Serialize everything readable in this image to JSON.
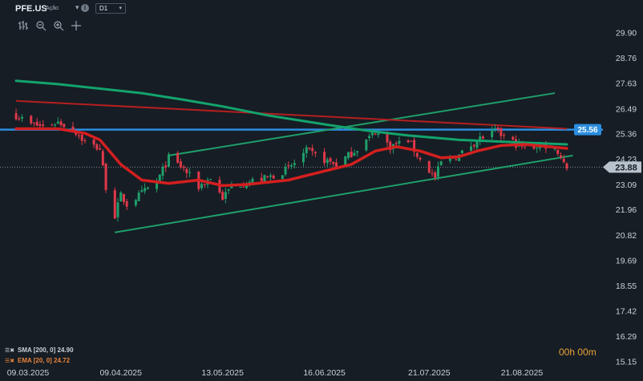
{
  "header": {
    "ticker": "PFE.US",
    "kind": "Ação",
    "info_icon": "i",
    "timeframe": "D1",
    "tools": [
      "bar-chart-icon",
      "zoom-out-icon",
      "zoom-in-icon",
      "crosshair-icon"
    ]
  },
  "legend": {
    "sma": "SMA [200, 0] 24.90",
    "ema": "EMA [20, 0] 24.72"
  },
  "timer": "00h 00m",
  "colors": {
    "background": "#161d24",
    "up": "#1f9e6a",
    "down": "#e0394a",
    "sma": "#14a36d",
    "ema": "#d31f1f",
    "horizontal_line": "#2b8de0",
    "channel": "#1f9e6a",
    "resistance": "#b51f1f",
    "price_label": "#b8c2cc"
  },
  "chart_data": {
    "type": "candlestick",
    "title": "",
    "ylim": [
      15.15,
      30.8
    ],
    "y_ticks": [
      29.9,
      28.76,
      27.63,
      26.49,
      25.36,
      24.23,
      23.09,
      21.96,
      20.82,
      19.69,
      18.55,
      17.42,
      16.29,
      15.15
    ],
    "x_ticks": [
      "09.03.2025",
      "09.04.2025",
      "13.05.2025",
      "16.06.2025",
      "21.07.2025",
      "21.08.2025"
    ],
    "x_start": "2025-03-05",
    "x_end": "2025-09-05",
    "last_price": 23.88,
    "horizontal_line_value": 25.56,
    "close_path": [
      [
        "2025-03-05",
        26.2
      ],
      [
        "2025-03-10",
        25.8
      ],
      [
        "2025-03-14",
        25.7
      ],
      [
        "2025-03-19",
        25.9
      ],
      [
        "2025-03-24",
        25.6
      ],
      [
        "2025-03-28",
        25.0
      ],
      [
        "2025-04-02",
        24.7
      ],
      [
        "2025-04-04",
        23.0
      ],
      [
        "2025-04-07",
        21.7
      ],
      [
        "2025-04-09",
        22.6
      ],
      [
        "2025-04-11",
        22.2
      ],
      [
        "2025-04-16",
        22.7
      ],
      [
        "2025-04-21",
        23.2
      ],
      [
        "2025-04-25",
        24.3
      ],
      [
        "2025-04-30",
        23.8
      ],
      [
        "2025-05-05",
        23.0
      ],
      [
        "2025-05-09",
        23.4
      ],
      [
        "2025-05-13",
        22.5
      ],
      [
        "2025-05-16",
        23.0
      ],
      [
        "2025-05-21",
        23.2
      ],
      [
        "2025-05-28",
        23.4
      ],
      [
        "2025-06-04",
        23.8
      ],
      [
        "2025-06-10",
        24.6
      ],
      [
        "2025-06-16",
        24.2
      ],
      [
        "2025-06-20",
        24.0
      ],
      [
        "2025-06-25",
        24.5
      ],
      [
        "2025-07-01",
        25.2
      ],
      [
        "2025-07-03",
        25.5
      ],
      [
        "2025-07-08",
        24.8
      ],
      [
        "2025-07-14",
        25.1
      ],
      [
        "2025-07-18",
        24.2
      ],
      [
        "2025-07-23",
        23.4
      ],
      [
        "2025-07-25",
        24.1
      ],
      [
        "2025-07-31",
        24.4
      ],
      [
        "2025-08-06",
        25.1
      ],
      [
        "2025-08-12",
        25.5
      ],
      [
        "2025-08-18",
        25.0
      ],
      [
        "2025-08-22",
        24.7
      ],
      [
        "2025-08-28",
        24.9
      ],
      [
        "2025-09-02",
        24.6
      ],
      [
        "2025-09-05",
        23.88
      ]
    ],
    "series": [
      {
        "name": "SMA [200, 0] 24.90",
        "points": [
          [
            "2025-03-05",
            27.75
          ],
          [
            "2025-03-19",
            27.6
          ],
          [
            "2025-04-02",
            27.4
          ],
          [
            "2025-04-16",
            27.2
          ],
          [
            "2025-04-30",
            26.9
          ],
          [
            "2025-05-13",
            26.6
          ],
          [
            "2025-05-28",
            26.2
          ],
          [
            "2025-06-16",
            25.8
          ],
          [
            "2025-07-01",
            25.5
          ],
          [
            "2025-07-14",
            25.3
          ],
          [
            "2025-07-31",
            25.1
          ],
          [
            "2025-08-18",
            25.0
          ],
          [
            "2025-09-05",
            24.9
          ]
        ]
      },
      {
        "name": "EMA [20, 0] 24.72",
        "points": [
          [
            "2025-03-05",
            25.6
          ],
          [
            "2025-03-19",
            25.6
          ],
          [
            "2025-03-28",
            25.4
          ],
          [
            "2025-04-02",
            25.1
          ],
          [
            "2025-04-09",
            24.0
          ],
          [
            "2025-04-16",
            23.3
          ],
          [
            "2025-04-25",
            23.15
          ],
          [
            "2025-05-05",
            23.3
          ],
          [
            "2025-05-13",
            23.05
          ],
          [
            "2025-05-21",
            23.1
          ],
          [
            "2025-06-04",
            23.3
          ],
          [
            "2025-06-16",
            23.7
          ],
          [
            "2025-06-25",
            24.0
          ],
          [
            "2025-07-03",
            24.6
          ],
          [
            "2025-07-10",
            24.8
          ],
          [
            "2025-07-18",
            24.6
          ],
          [
            "2025-07-25",
            24.3
          ],
          [
            "2025-07-31",
            24.35
          ],
          [
            "2025-08-06",
            24.6
          ],
          [
            "2025-08-14",
            24.85
          ],
          [
            "2025-08-22",
            24.9
          ],
          [
            "2025-09-05",
            24.72
          ]
        ]
      }
    ],
    "trendlines": [
      {
        "name": "channel-lower",
        "start": [
          "2025-04-07",
          20.95
        ],
        "end": [
          "2025-09-07",
          24.4
        ]
      },
      {
        "name": "channel-upper",
        "start": [
          "2025-04-25",
          24.4
        ],
        "end": [
          "2025-09-01",
          27.2
        ]
      },
      {
        "name": "resistance",
        "start": [
          "2025-03-05",
          26.85
        ],
        "end": [
          "2025-09-05",
          25.6
        ]
      }
    ]
  }
}
